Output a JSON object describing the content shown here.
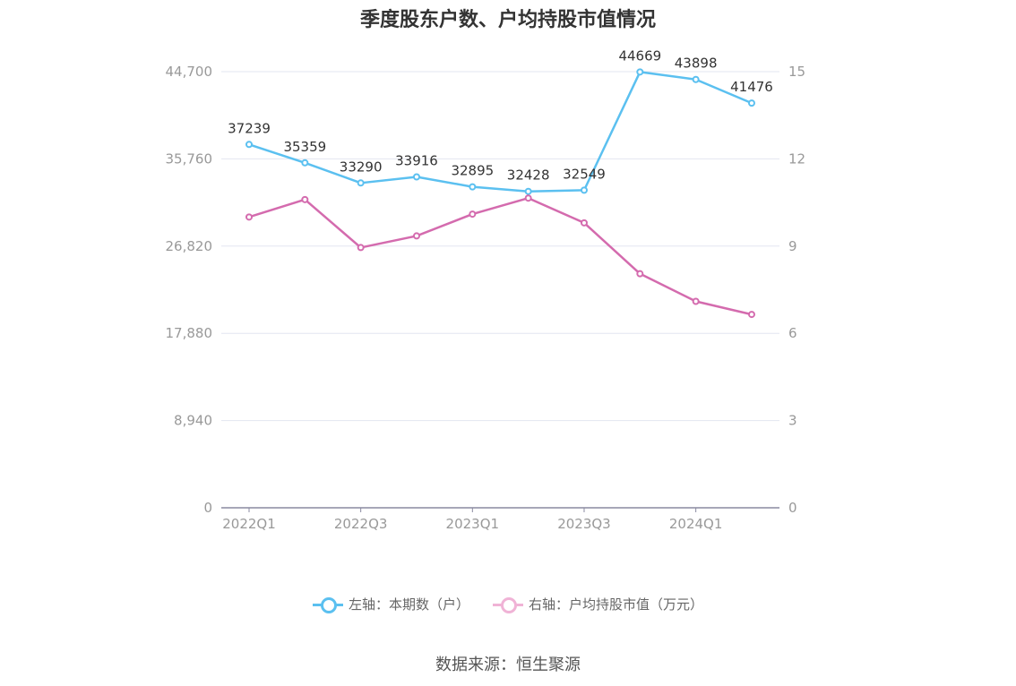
{
  "chart_data": {
    "type": "line",
    "title": "季度股东户数、户均持股市值情况",
    "categories": [
      "2022Q1",
      "2022Q2",
      "2022Q3",
      "2022Q4",
      "2023Q1",
      "2023Q2",
      "2023Q3",
      "2023Q4",
      "2024Q1",
      "2024Q2"
    ],
    "x_tick_labels": [
      "2022Q1",
      "2022Q3",
      "2023Q1",
      "2023Q3",
      "2024Q1"
    ],
    "left_axis": {
      "ylim": [
        0,
        44700
      ],
      "ticks": [
        0,
        8940,
        17880,
        26820,
        35760,
        44700
      ],
      "tick_labels": [
        "0",
        "8,940",
        "17,880",
        "26,820",
        "35,760",
        "44,700"
      ]
    },
    "right_axis": {
      "ylim": [
        0,
        15
      ],
      "ticks": [
        0,
        3,
        6,
        9,
        12,
        15
      ],
      "tick_labels": [
        "0",
        "3",
        "6",
        "9",
        "12",
        "15"
      ]
    },
    "series": [
      {
        "name": "左轴：本期数（户）",
        "axis": "left",
        "color": "#5bc0f0",
        "values": [
          37239,
          35359,
          33290,
          33916,
          32895,
          32428,
          32549,
          44669,
          43898,
          41476
        ],
        "labels": [
          "37239",
          "35359",
          "33290",
          "33916",
          "32895",
          "32428",
          "32549",
          "44669",
          "43898",
          "41476"
        ]
      },
      {
        "name": "右轴：户均持股市值（万元）",
        "axis": "right",
        "color": "#d46bae",
        "values": [
          10.0,
          10.6,
          8.95,
          9.35,
          10.1,
          10.65,
          9.8,
          8.05,
          7.1,
          6.65
        ]
      }
    ],
    "grid": true,
    "legend_position": "bottom"
  },
  "source": "数据来源：恒生聚源"
}
